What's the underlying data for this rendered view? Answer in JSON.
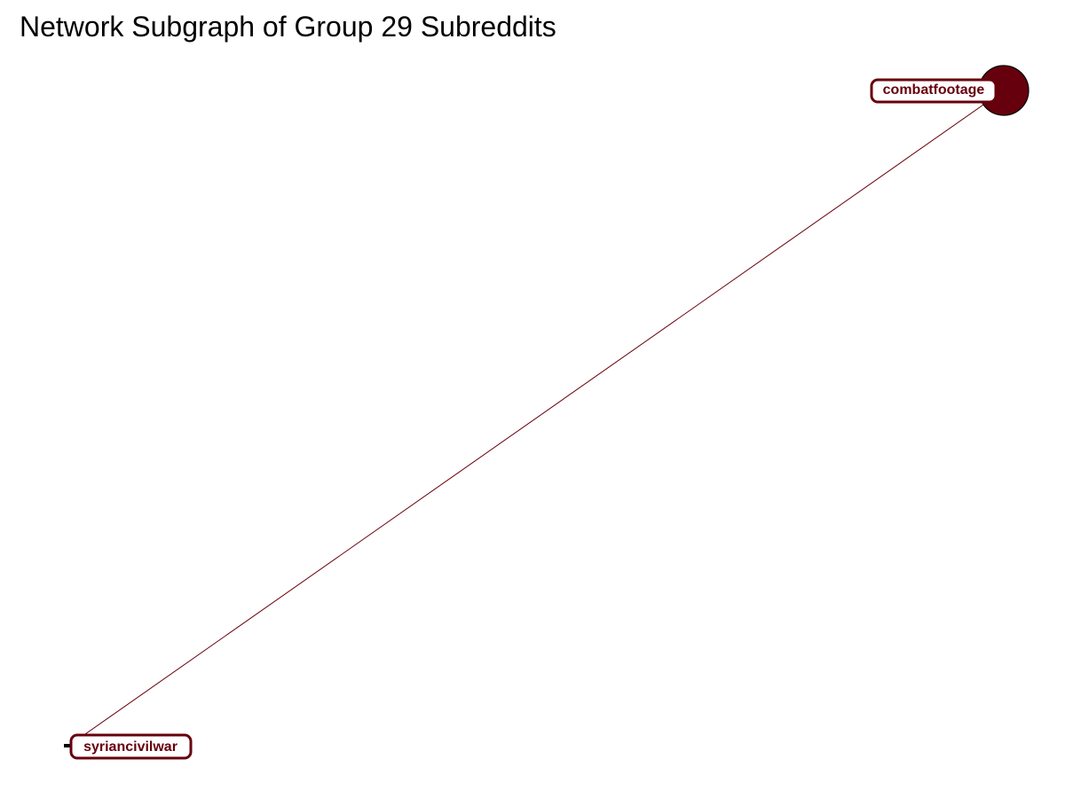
{
  "title": "Network Subgraph of Group 29 Subreddits",
  "colors": {
    "node": "#67000d",
    "edge": "#67000d",
    "label_bg": "#ffffff",
    "outline": "#000000"
  },
  "nodes": [
    {
      "id": "combatfootage",
      "label": "combatfootage",
      "size": "large"
    },
    {
      "id": "syriancivilwar",
      "label": "syriancivilwar",
      "size": "small"
    }
  ],
  "edges": [
    {
      "source": "combatfootage",
      "target": "syriancivilwar"
    }
  ]
}
